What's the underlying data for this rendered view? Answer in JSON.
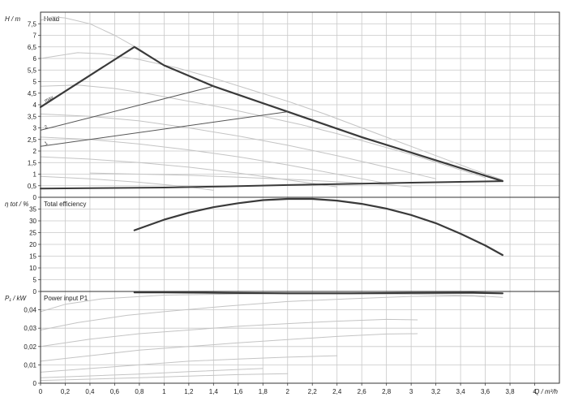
{
  "chart_data": [
    {
      "type": "line",
      "panel": "head",
      "title": "Head",
      "ylabel": "H / m",
      "xlabel": "Q / m³/h",
      "xlim": [
        0,
        4.2
      ],
      "ylim": [
        0,
        8
      ],
      "grid": true,
      "x_ticks": [
        "0",
        "0,2",
        "0,4",
        "0,6",
        "0,8",
        "1",
        "1,2",
        "1,4",
        "1,6",
        "1,8",
        "2",
        "2,2",
        "2,4",
        "2,6",
        "2,8",
        "3",
        "3,2",
        "3,4",
        "3,6",
        "3,8",
        "4"
      ],
      "y_ticks": [
        "0",
        "0,5",
        "1",
        "1,5",
        "2",
        "2,5",
        "3",
        "3,5",
        "4",
        "4,5",
        "5",
        "5,5",
        "6",
        "6,5",
        "7",
        "7,5"
      ],
      "colors": {
        "envelope": "#3a3a3a",
        "dp_lines": "#555555",
        "faint": "#c4c4c4",
        "grid": "#c8c8c8"
      },
      "series": [
        {
          "role": "envelope",
          "x": [
            0,
            0.76,
            1.0,
            1.4,
            2.0,
            2.6,
            3.2,
            3.74
          ],
          "y": [
            3.9,
            6.5,
            5.7,
            4.8,
            3.7,
            2.6,
            1.6,
            0.7
          ]
        },
        {
          "role": "min-line",
          "x": [
            0,
            0.5,
            1.0,
            1.5,
            2.0,
            2.5,
            3.0,
            3.74
          ],
          "y": [
            0.38,
            0.4,
            0.42,
            0.47,
            0.53,
            0.58,
            0.63,
            0.7
          ]
        },
        {
          "role": "dp-line",
          "label": "2",
          "x": [
            0,
            1.4
          ],
          "y": [
            2.9,
            4.8
          ]
        },
        {
          "role": "dp-line",
          "label": "1",
          "x": [
            0,
            2.0
          ],
          "y": [
            2.2,
            3.7
          ]
        },
        {
          "role": "faint",
          "x": [
            0,
            0.1,
            0.2,
            0.4,
            0.6,
            0.8,
            1.0,
            1.4
          ],
          "y": [
            7.65,
            7.8,
            7.75,
            7.5,
            7.0,
            6.4,
            5.7,
            4.8
          ]
        },
        {
          "role": "faint",
          "x": [
            0,
            0.3,
            0.5,
            0.8,
            1.1,
            1.4,
            1.7,
            2.0,
            2.3,
            2.6,
            2.9,
            3.2,
            3.5,
            3.74
          ],
          "y": [
            6.0,
            6.25,
            6.2,
            5.95,
            5.6,
            5.15,
            4.65,
            4.15,
            3.6,
            3.0,
            2.4,
            1.8,
            1.2,
            0.75
          ]
        },
        {
          "role": "faint",
          "x": [
            0,
            0.3,
            0.6,
            0.9,
            1.2,
            1.5,
            1.8,
            2.1,
            2.4,
            2.7,
            3.0,
            3.3,
            3.6
          ],
          "y": [
            4.8,
            4.85,
            4.7,
            4.45,
            4.15,
            3.85,
            3.5,
            3.15,
            2.75,
            2.3,
            1.85,
            1.35,
            0.85
          ]
        },
        {
          "role": "faint",
          "x": [
            0,
            0.4,
            0.8,
            1.2,
            1.6,
            2.0,
            2.4,
            2.8,
            3.2
          ],
          "y": [
            3.6,
            3.5,
            3.3,
            3.0,
            2.65,
            2.25,
            1.8,
            1.3,
            0.8
          ]
        },
        {
          "role": "faint",
          "x": [
            0,
            0.4,
            0.8,
            1.2,
            1.6,
            2.0,
            2.4,
            2.8
          ],
          "y": [
            2.6,
            2.5,
            2.3,
            2.05,
            1.75,
            1.4,
            1.0,
            0.6
          ]
        },
        {
          "role": "faint",
          "x": [
            0,
            0.4,
            0.8,
            1.2,
            1.6,
            2.0,
            2.4
          ],
          "y": [
            1.75,
            1.65,
            1.5,
            1.3,
            1.05,
            0.75,
            0.45
          ]
        },
        {
          "role": "faint",
          "x": [
            0.4,
            0.8,
            1.2,
            1.6,
            2.0,
            2.4,
            2.8,
            3.0
          ],
          "y": [
            1.05,
            1.0,
            0.95,
            0.87,
            0.78,
            0.67,
            0.55,
            0.45
          ]
        },
        {
          "role": "faint",
          "x": [
            0,
            0.4,
            0.8,
            1.2,
            1.4
          ],
          "y": [
            0.9,
            0.8,
            0.65,
            0.45,
            0.3
          ]
        }
      ],
      "annotations": [
        {
          "text": "max",
          "x": 0.04,
          "y": 4.1
        },
        {
          "text": "2",
          "x": 0.04,
          "y": 2.95
        },
        {
          "text": "1",
          "x": 0.04,
          "y": 2.25
        }
      ]
    },
    {
      "type": "line",
      "panel": "efficiency",
      "title": "Total efficiency",
      "ylabel": "η tot / %",
      "xlim": [
        0,
        4.2
      ],
      "ylim": [
        0,
        40
      ],
      "grid": true,
      "y_ticks": [
        "0",
        "5",
        "10",
        "15",
        "20",
        "25",
        "30",
        "35"
      ],
      "series": [
        {
          "role": "main",
          "x": [
            0.76,
            1.0,
            1.2,
            1.4,
            1.6,
            1.8,
            2.0,
            2.2,
            2.4,
            2.6,
            2.8,
            3.0,
            3.2,
            3.4,
            3.6,
            3.74
          ],
          "y": [
            26,
            30.5,
            33.5,
            35.8,
            37.5,
            38.8,
            39.3,
            39.3,
            38.6,
            37.2,
            35.2,
            32.5,
            29,
            24.5,
            19.5,
            15.5
          ]
        }
      ]
    },
    {
      "type": "line",
      "panel": "power",
      "title": "Power input P1",
      "ylabel": "P₁ / kW",
      "xlim": [
        0,
        4.2
      ],
      "ylim": [
        0,
        0.05
      ],
      "grid": true,
      "y_ticks": [
        "0",
        "0,01",
        "0,02",
        "0,03",
        "0,04"
      ],
      "series": [
        {
          "role": "main",
          "x": [
            0.76,
            1.0,
            1.5,
            2.0,
            2.5,
            3.0,
            3.5,
            3.74
          ],
          "y": [
            0.0495,
            0.0495,
            0.0492,
            0.049,
            0.049,
            0.0492,
            0.0493,
            0.049
          ]
        },
        {
          "role": "faint",
          "x": [
            0,
            0.2,
            0.5,
            1.0,
            1.5,
            2.0,
            2.5,
            3.0,
            3.5,
            3.74
          ],
          "y": [
            0.039,
            0.043,
            0.046,
            0.048,
            0.0485,
            0.049,
            0.0488,
            0.0485,
            0.0478,
            0.0468
          ]
        },
        {
          "role": "faint",
          "x": [
            0,
            0.3,
            0.7,
            1.0,
            1.5,
            2.0,
            2.5,
            3.0,
            3.5,
            3.6
          ],
          "y": [
            0.029,
            0.033,
            0.037,
            0.039,
            0.042,
            0.0445,
            0.046,
            0.0473,
            0.0475,
            0.047
          ]
        },
        {
          "role": "faint",
          "x": [
            0,
            0.4,
            0.8,
            1.2,
            1.6,
            2.0,
            2.4,
            2.8,
            3.05
          ],
          "y": [
            0.02,
            0.024,
            0.027,
            0.029,
            0.031,
            0.0325,
            0.0338,
            0.0348,
            0.0345
          ]
        },
        {
          "role": "faint",
          "x": [
            0,
            0.4,
            0.8,
            1.2,
            1.6,
            2.0,
            2.4,
            2.8,
            3.05
          ],
          "y": [
            0.012,
            0.015,
            0.018,
            0.02,
            0.022,
            0.0238,
            0.0255,
            0.0268,
            0.027
          ]
        },
        {
          "role": "faint",
          "x": [
            0,
            0.4,
            0.8,
            1.2,
            1.6,
            2.0,
            2.4
          ],
          "y": [
            0.006,
            0.008,
            0.01,
            0.012,
            0.0132,
            0.0142,
            0.015
          ]
        },
        {
          "role": "faint",
          "x": [
            0,
            0.4,
            0.8,
            1.2,
            1.6,
            1.8
          ],
          "y": [
            0.003,
            0.004,
            0.005,
            0.0063,
            0.0075,
            0.008
          ]
        },
        {
          "role": "faint",
          "x": [
            0,
            0.4,
            0.8,
            1.2,
            1.6,
            2.0
          ],
          "y": [
            0.0015,
            0.0022,
            0.003,
            0.0039,
            0.0047,
            0.0052
          ]
        }
      ]
    }
  ]
}
